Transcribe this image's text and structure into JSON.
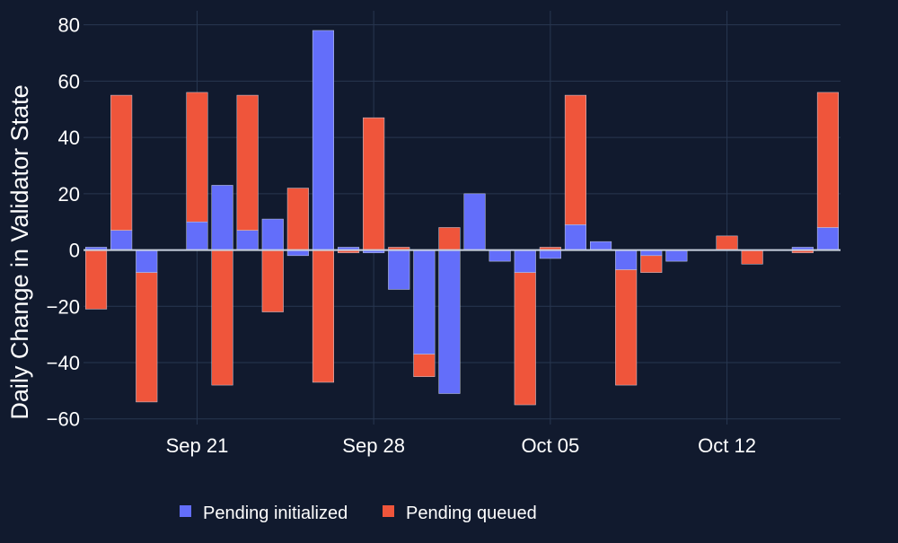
{
  "colors": {
    "background": "#111a2e",
    "grid": "#283750",
    "zeroline": "#c9d1df",
    "text": "#ffffff",
    "pending_initialized": "#636efa",
    "pending_queued": "#ef553b"
  },
  "chart_data": {
    "type": "bar",
    "barmode": "relative",
    "title": "",
    "xlabel": "",
    "ylabel": "Daily Change in Validator State",
    "ylim": [
      -62,
      85
    ],
    "yticks": [
      -60,
      -40,
      -20,
      0,
      20,
      40,
      60,
      80
    ],
    "ytick_labels": [
      "−60",
      "−40",
      "−20",
      "0",
      "20",
      "40",
      "60",
      "80"
    ],
    "xticks": [
      {
        "date": "2023-09-21",
        "label": "Sep 21"
      },
      {
        "date": "2023-09-28",
        "label": "Sep 28"
      },
      {
        "date": "2023-10-05",
        "label": "Oct 05"
      },
      {
        "date": "2023-10-12",
        "label": "Oct 12"
      }
    ],
    "grid": true,
    "legend_position": "bottom-center",
    "dates": [
      "2023-09-17",
      "2023-09-18",
      "2023-09-19",
      "2023-09-20",
      "2023-09-21",
      "2023-09-22",
      "2023-09-23",
      "2023-09-24",
      "2023-09-25",
      "2023-09-26",
      "2023-09-27",
      "2023-09-28",
      "2023-09-29",
      "2023-09-30",
      "2023-10-01",
      "2023-10-02",
      "2023-10-03",
      "2023-10-04",
      "2023-10-05",
      "2023-10-06",
      "2023-10-07",
      "2023-10-08",
      "2023-10-09",
      "2023-10-10",
      "2023-10-11",
      "2023-10-12",
      "2023-10-13",
      "2023-10-14",
      "2023-10-15",
      "2023-10-16"
    ],
    "series": [
      {
        "name": "Pending initialized",
        "color_key": "pending_initialized",
        "values": [
          1,
          7,
          -8,
          0,
          10,
          23,
          7,
          11,
          -2,
          78,
          1,
          -1,
          -14,
          -37,
          -51,
          20,
          -4,
          -8,
          -3,
          9,
          3,
          -7,
          -2,
          -4,
          0,
          0,
          0,
          0,
          1,
          8
        ]
      },
      {
        "name": "Pending queued",
        "color_key": "pending_queued",
        "values": [
          -21,
          48,
          -46,
          0,
          46,
          -48,
          48,
          -22,
          22,
          -47,
          -1,
          47,
          1,
          -8,
          8,
          0,
          0,
          -47,
          1,
          46,
          0,
          -41,
          -6,
          0,
          0,
          5,
          -5,
          0,
          -1,
          48
        ]
      }
    ]
  }
}
